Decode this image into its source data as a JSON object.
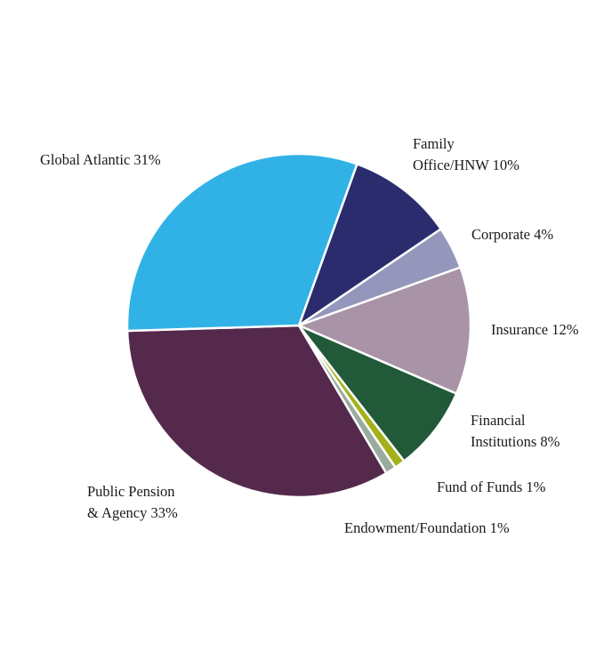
{
  "chart_data": {
    "type": "pie",
    "slices": [
      {
        "label_lines": [
          "Family",
          "Office/HNW 10%"
        ],
        "value": 10,
        "color": "#2a2c6e"
      },
      {
        "label_lines": [
          "Corporate 4%"
        ],
        "value": 4,
        "color": "#9497bb"
      },
      {
        "label_lines": [
          "Insurance 12%"
        ],
        "value": 12,
        "color": "#a894a6"
      },
      {
        "label_lines": [
          "Financial",
          "Institutions 8%"
        ],
        "value": 8,
        "color": "#225a39"
      },
      {
        "label_lines": [
          "Fund of Funds 1%"
        ],
        "value": 1,
        "color": "#a4b11a"
      },
      {
        "label_lines": [
          "Endowment/Foundation 1%"
        ],
        "value": 1,
        "color": "#9aac9f"
      },
      {
        "label_lines": [
          "Public Pension",
          "& Agency 33%"
        ],
        "value": 33,
        "color": "#55294c"
      },
      {
        "label_lines": [
          "Global Atlantic 31%"
        ],
        "value": 31,
        "color": "#31b2e6"
      }
    ],
    "legend": "none"
  }
}
